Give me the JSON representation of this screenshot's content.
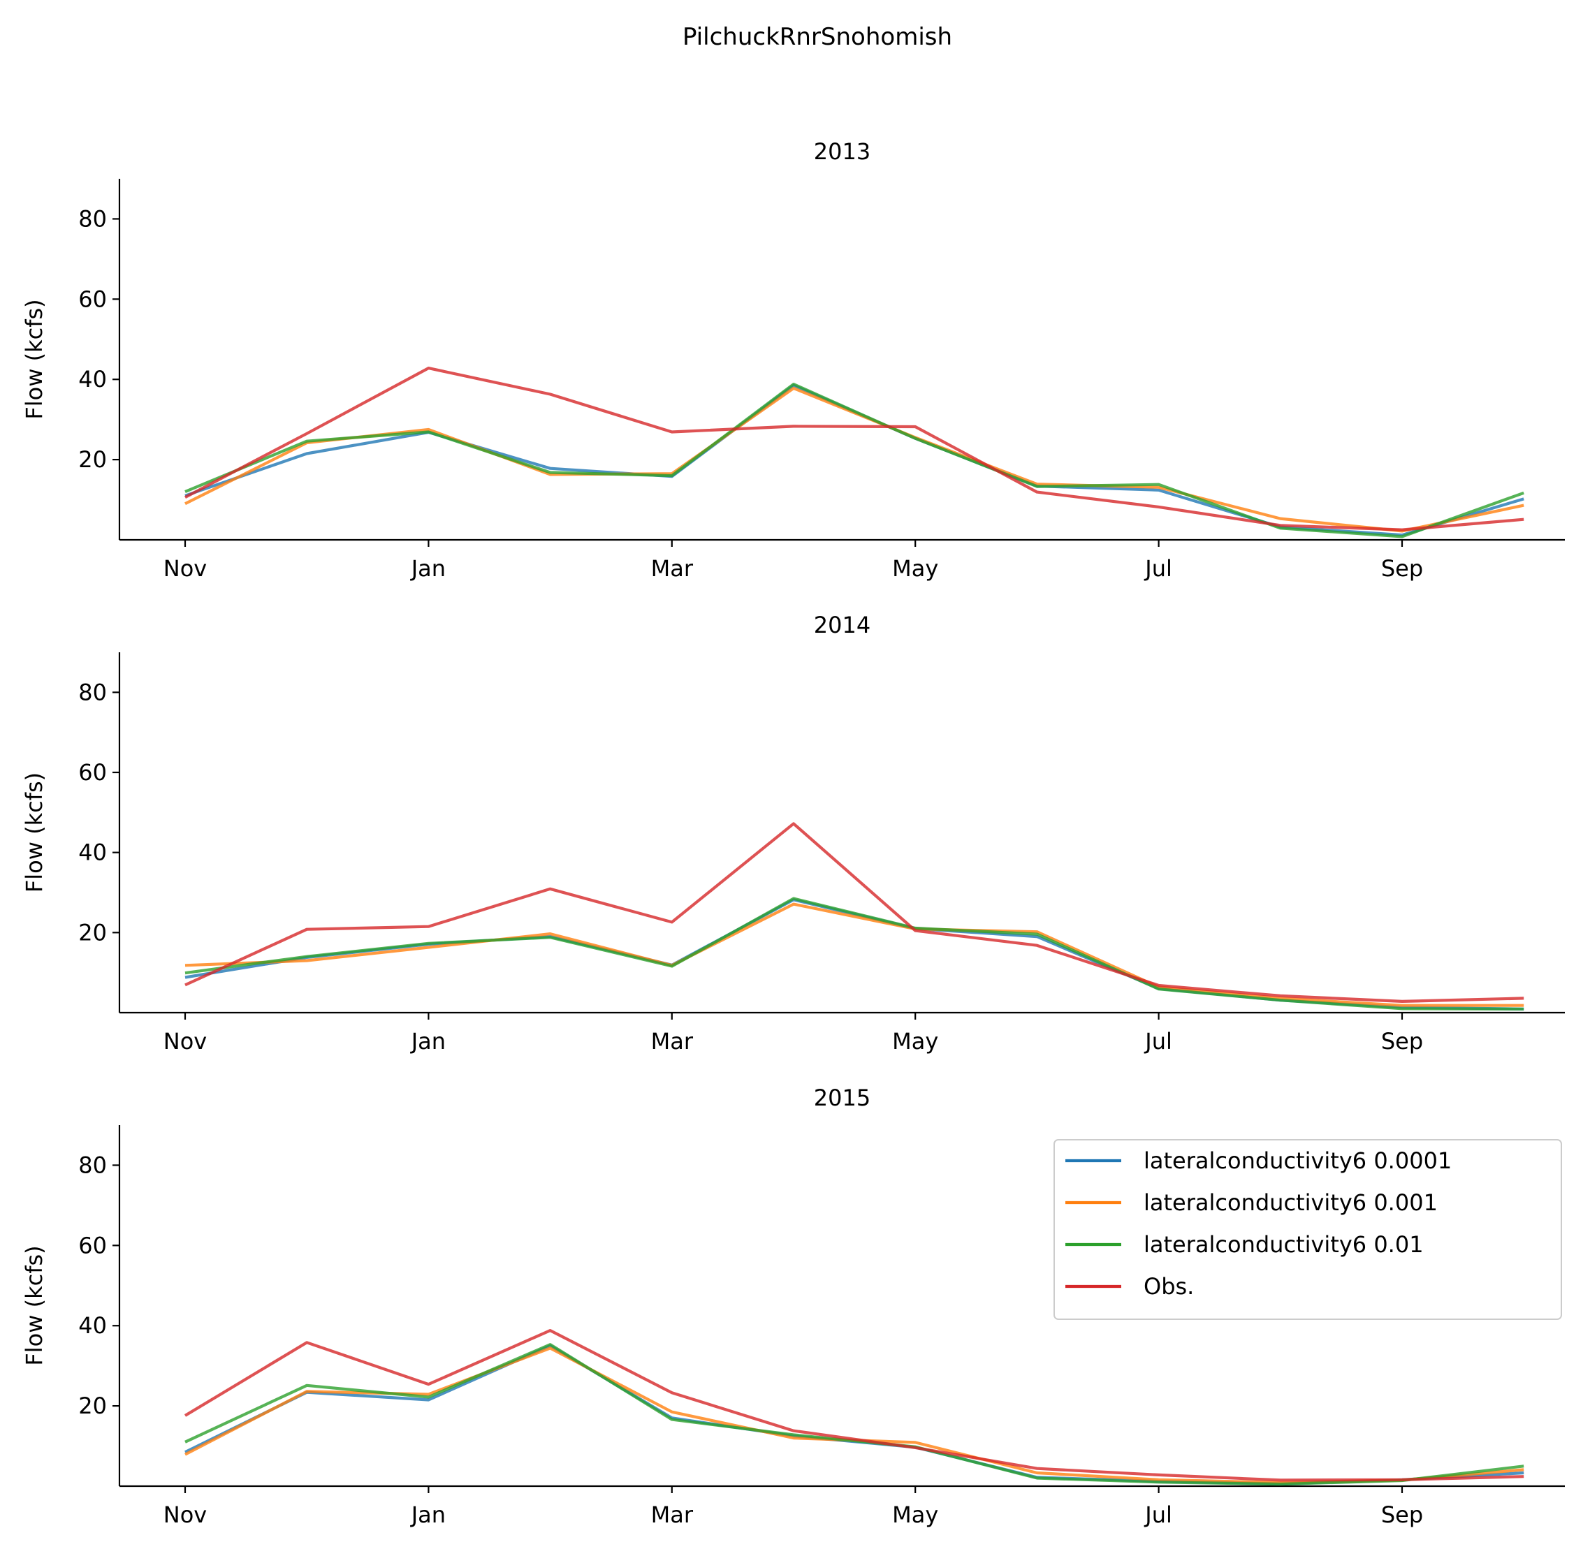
{
  "figure": {
    "suptitle": "PilchuckRnrSnohomish"
  },
  "colors": {
    "s0": "#1f77b4",
    "s1": "#ff7f0e",
    "s2": "#2ca02c",
    "s3": "#d62728"
  },
  "chart_data": [
    {
      "type": "line",
      "title": "2013",
      "xlabel": "",
      "ylabel": "Flow (kcfs)",
      "x": [
        "Nov",
        "Dec",
        "Jan",
        "Feb",
        "Mar",
        "Apr",
        "May",
        "Jun",
        "Jul",
        "Aug",
        "Sep",
        "Oct"
      ],
      "xticks": [
        "Nov",
        "Jan",
        "Mar",
        "May",
        "Jul",
        "Sep"
      ],
      "ylim": [
        0,
        90
      ],
      "yticks": [
        20,
        40,
        60,
        80
      ],
      "grid": false,
      "series": [
        {
          "name": "lateralconductivity6 0.0001",
          "values": [
            11.0,
            21.5,
            26.8,
            17.8,
            15.8,
            38.5,
            25.3,
            13.4,
            12.4,
            3.2,
            1.2,
            10.2
          ]
        },
        {
          "name": "lateralconductivity6 0.001",
          "values": [
            9.0,
            24.2,
            27.5,
            16.3,
            16.5,
            37.8,
            25.5,
            13.9,
            13.1,
            5.3,
            2.2,
            8.6
          ]
        },
        {
          "name": "lateralconductivity6 0.01",
          "values": [
            12.0,
            24.6,
            26.9,
            16.8,
            16.0,
            38.8,
            25.3,
            13.3,
            13.8,
            2.9,
            0.8,
            11.7
          ]
        },
        {
          "name": "Obs.",
          "values": [
            10.6,
            26.5,
            42.8,
            36.3,
            26.9,
            28.3,
            28.2,
            11.9,
            8.2,
            3.6,
            2.5,
            5.1
          ]
        }
      ]
    },
    {
      "type": "line",
      "title": "2014",
      "xlabel": "",
      "ylabel": "Flow (kcfs)",
      "x": [
        "Nov",
        "Dec",
        "Jan",
        "Feb",
        "Mar",
        "Apr",
        "May",
        "Jun",
        "Jul",
        "Aug",
        "Sep",
        "Oct"
      ],
      "xticks": [
        "Nov",
        "Jan",
        "Mar",
        "May",
        "Jul",
        "Sep"
      ],
      "ylim": [
        0,
        90
      ],
      "yticks": [
        20,
        40,
        60,
        80
      ],
      "grid": false,
      "series": [
        {
          "name": "lateralconductivity6 0.0001",
          "values": [
            8.8,
            13.8,
            17.1,
            19.0,
            11.9,
            28.2,
            21.0,
            19.0,
            6.0,
            3.1,
            1.3,
            0.9
          ]
        },
        {
          "name": "lateralconductivity6 0.001",
          "values": [
            11.8,
            13.0,
            16.3,
            19.7,
            11.8,
            27.1,
            20.9,
            20.2,
            6.4,
            3.6,
            1.8,
            1.8
          ]
        },
        {
          "name": "lateralconductivity6 0.01",
          "values": [
            9.9,
            14.0,
            17.3,
            18.8,
            11.6,
            28.5,
            21.1,
            19.6,
            5.9,
            3.1,
            1.0,
            0.9
          ]
        },
        {
          "name": "Obs.",
          "values": [
            6.9,
            20.8,
            21.5,
            30.9,
            22.6,
            47.2,
            20.5,
            16.8,
            6.8,
            4.2,
            2.8,
            3.6
          ]
        }
      ]
    },
    {
      "type": "line",
      "title": "2015",
      "xlabel": "",
      "ylabel": "Flow (kcfs)",
      "x": [
        "Nov",
        "Dec",
        "Jan",
        "Feb",
        "Mar",
        "Apr",
        "May",
        "Jun",
        "Jul",
        "Aug",
        "Sep",
        "Oct"
      ],
      "xticks": [
        "Nov",
        "Jan",
        "Mar",
        "May",
        "Jul",
        "Sep"
      ],
      "ylim": [
        0,
        90
      ],
      "yticks": [
        20,
        40,
        60,
        80
      ],
      "grid": false,
      "legend": "upper right",
      "series": [
        {
          "name": "lateralconductivity6 0.0001",
          "values": [
            8.5,
            23.4,
            21.5,
            35.0,
            17.0,
            12.5,
            9.7,
            2.2,
            1.2,
            0.6,
            1.6,
            3.3
          ]
        },
        {
          "name": "lateralconductivity6 0.001",
          "values": [
            7.9,
            23.6,
            22.9,
            34.4,
            18.5,
            12.0,
            10.9,
            3.3,
            1.6,
            0.9,
            1.5,
            4.1
          ]
        },
        {
          "name": "lateralconductivity6 0.01",
          "values": [
            11.0,
            25.1,
            22.2,
            35.3,
            16.6,
            12.8,
            9.8,
            2.0,
            1.0,
            0.5,
            1.4,
            5.0
          ]
        },
        {
          "name": "Obs.",
          "values": [
            17.6,
            35.8,
            25.4,
            38.8,
            23.3,
            13.8,
            9.6,
            4.4,
            2.8,
            1.5,
            1.6,
            2.4
          ]
        }
      ]
    }
  ]
}
